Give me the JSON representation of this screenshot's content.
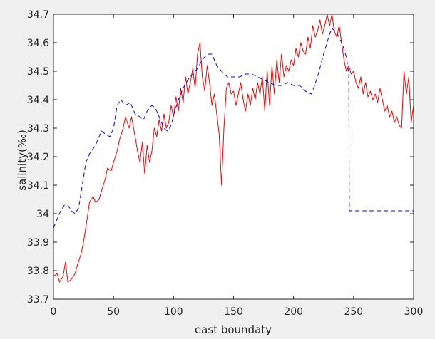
{
  "chart_data": {
    "type": "line",
    "title": "",
    "xlabel": "east boundaty",
    "ylabel": "salinity(‰)",
    "xlim": [
      0,
      300
    ],
    "ylim": [
      33.7,
      34.7
    ],
    "grid": false,
    "x_ticks": [
      0,
      50,
      100,
      150,
      200,
      250,
      300
    ],
    "x_tick_labels": [
      "0",
      "50",
      "100",
      "150",
      "200",
      "250",
      "300"
    ],
    "y_ticks": [
      33.7,
      33.8,
      33.9,
      34.0,
      34.1,
      34.2,
      34.3,
      34.4,
      34.5,
      34.6,
      34.7
    ],
    "y_tick_labels": [
      "33.7",
      "33.8",
      "33.9",
      "34",
      "34.1",
      "34.2",
      "34.3",
      "34.4",
      "34.5",
      "34.6",
      "34.7"
    ],
    "colors": {
      "series_red": "#ff0000",
      "series_blue": "#0000ff",
      "axes_bg": "#ffffff",
      "figure_bg": "#f0f0f0"
    },
    "series": [
      {
        "style": "solid",
        "color": "#ff0000",
        "x": [
          0,
          3,
          5,
          8,
          10,
          12,
          15,
          18,
          20,
          23,
          25,
          28,
          30,
          33,
          35,
          38,
          40,
          43,
          45,
          48,
          50,
          53,
          55,
          58,
          60,
          63,
          65,
          68,
          70,
          72,
          74,
          76,
          78,
          80,
          82,
          84,
          86,
          88,
          90,
          92,
          94,
          96,
          98,
          100,
          102,
          104,
          106,
          108,
          110,
          112,
          114,
          116,
          118,
          120,
          122,
          124,
          126,
          128,
          130,
          132,
          134,
          136,
          138,
          140,
          142,
          144,
          146,
          148,
          150,
          152,
          154,
          156,
          158,
          160,
          162,
          164,
          166,
          168,
          170,
          172,
          174,
          176,
          178,
          180,
          182,
          184,
          186,
          188,
          190,
          192,
          194,
          196,
          198,
          200,
          202,
          204,
          206,
          208,
          210,
          212,
          214,
          216,
          218,
          220,
          222,
          224,
          226,
          228,
          230,
          232,
          234,
          236,
          238,
          240,
          242,
          244,
          246,
          248,
          250,
          252,
          254,
          256,
          258,
          260,
          262,
          264,
          266,
          268,
          270,
          272,
          274,
          276,
          278,
          280,
          282,
          284,
          286,
          288,
          290,
          292,
          294,
          296,
          298,
          300
        ],
        "y": [
          33.78,
          33.79,
          33.76,
          33.78,
          33.83,
          33.76,
          33.77,
          33.79,
          33.82,
          33.86,
          33.9,
          33.98,
          34.04,
          34.06,
          34.04,
          34.05,
          34.08,
          34.12,
          34.16,
          34.15,
          34.18,
          34.22,
          34.26,
          34.3,
          34.34,
          34.3,
          34.34,
          34.27,
          34.22,
          34.18,
          34.25,
          34.14,
          34.24,
          34.18,
          34.22,
          34.3,
          34.27,
          34.33,
          34.29,
          34.35,
          34.3,
          34.32,
          34.38,
          34.34,
          34.41,
          34.36,
          34.44,
          34.39,
          34.48,
          34.42,
          34.46,
          34.51,
          34.44,
          34.56,
          34.6,
          34.48,
          34.43,
          34.52,
          34.46,
          34.38,
          34.42,
          34.35,
          34.28,
          34.1,
          34.3,
          34.44,
          34.46,
          34.42,
          34.43,
          34.38,
          34.42,
          34.46,
          34.4,
          34.36,
          34.42,
          34.38,
          34.44,
          34.4,
          34.46,
          34.42,
          34.48,
          34.36,
          34.5,
          34.38,
          34.52,
          34.42,
          34.54,
          34.46,
          34.56,
          34.48,
          34.52,
          34.5,
          34.54,
          34.52,
          34.58,
          34.55,
          34.6,
          34.57,
          34.56,
          34.62,
          34.58,
          34.66,
          34.62,
          34.64,
          34.68,
          34.63,
          34.66,
          34.7,
          34.66,
          34.7,
          34.64,
          34.62,
          34.66,
          34.6,
          34.54,
          34.5,
          34.52,
          34.49,
          34.5,
          34.46,
          34.44,
          34.48,
          34.42,
          34.46,
          34.41,
          34.43,
          34.4,
          34.42,
          34.39,
          34.44,
          34.4,
          34.36,
          34.38,
          34.34,
          34.36,
          34.32,
          34.34,
          34.31,
          34.3,
          34.5,
          34.42,
          34.48,
          34.32,
          34.38
        ]
      },
      {
        "style": "dashed",
        "color": "#0000ff",
        "x": [
          0,
          3,
          6,
          9,
          12,
          15,
          18,
          21,
          24,
          27,
          30,
          35,
          40,
          43,
          47,
          50,
          53,
          56,
          60,
          64,
          68,
          72,
          75,
          78,
          82,
          85,
          88,
          92,
          95,
          98,
          101,
          104,
          108,
          112,
          116,
          120,
          124,
          128,
          132,
          136,
          140,
          145,
          150,
          155,
          160,
          165,
          170,
          175,
          180,
          185,
          190,
          195,
          200,
          205,
          210,
          215,
          220,
          225,
          230,
          232,
          235,
          238,
          241,
          244,
          246,
          246.5,
          260,
          280,
          300
        ],
        "y": [
          33.95,
          33.98,
          34.01,
          34.03,
          34.03,
          34.01,
          34.0,
          34.02,
          34.1,
          34.18,
          34.21,
          34.24,
          34.29,
          34.28,
          34.27,
          34.3,
          34.38,
          34.4,
          34.38,
          34.39,
          34.35,
          34.34,
          34.33,
          34.36,
          34.38,
          34.37,
          34.34,
          34.3,
          34.29,
          34.31,
          34.36,
          34.4,
          34.44,
          34.47,
          34.49,
          34.51,
          34.54,
          34.56,
          34.56,
          34.52,
          34.5,
          34.48,
          34.48,
          34.48,
          34.49,
          34.49,
          34.48,
          34.47,
          34.46,
          34.45,
          34.45,
          34.46,
          34.45,
          34.45,
          34.43,
          34.42,
          34.48,
          34.56,
          34.63,
          34.65,
          34.64,
          34.62,
          34.59,
          34.55,
          34.49,
          34.01,
          34.01,
          34.01,
          34.01
        ]
      }
    ]
  }
}
